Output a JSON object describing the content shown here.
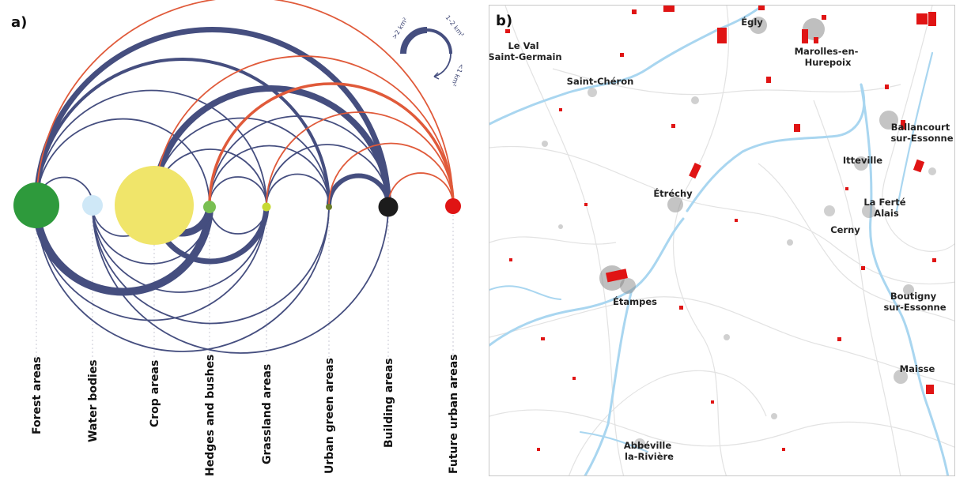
{
  "panel_a": {
    "letter": "a)",
    "nodes": [
      {
        "label": "Forest areas",
        "color": "#2e9a3c"
      },
      {
        "label": "Water bodies",
        "color": "#cfe8f7"
      },
      {
        "label": "Crop areas",
        "color": "#f0e56a"
      },
      {
        "label": "Hedges and bushes",
        "color": "#79bf52"
      },
      {
        "label": "Grassland areas",
        "color": "#c7d933"
      },
      {
        "label": "Urban green areas",
        "color": "#6d7f2a"
      },
      {
        "label": "Building areas",
        "color": "#1c1c1c"
      },
      {
        "label": "Future urban areas",
        "color": "#e01414"
      }
    ],
    "legend": {
      "large": ">2 km²",
      "medium": "1–2 km²",
      "small": "<1 km²"
    },
    "colors": {
      "link": "#454e7f",
      "future_link": "#e05a3a"
    }
  },
  "panel_b": {
    "letter": "b)",
    "towns": [
      {
        "name": [
          "Égly"
        ]
      },
      {
        "name": [
          "Le Val",
          "Saint-Germain"
        ]
      },
      {
        "name": [
          "Marolles-en-",
          "Hurepoix"
        ]
      },
      {
        "name": [
          "Saint-Chéron"
        ]
      },
      {
        "name": [
          "Ballancourt",
          "sur-Essonne"
        ]
      },
      {
        "name": [
          "Itteville"
        ]
      },
      {
        "name": [
          "Étréchy"
        ]
      },
      {
        "name": [
          "La Ferté",
          "Alais"
        ]
      },
      {
        "name": [
          "Cerny"
        ]
      },
      {
        "name": [
          "Étampes"
        ]
      },
      {
        "name": [
          "Boutigny",
          "sur-Essonne"
        ]
      },
      {
        "name": [
          "Maisse"
        ]
      },
      {
        "name": [
          "Abbéville",
          "la-Rivière"
        ]
      }
    ],
    "colors": {
      "river": "#a9d6f0",
      "road": "#e4e4e4",
      "urban": "#8a8a8a",
      "future_urban": "#e01414"
    }
  }
}
